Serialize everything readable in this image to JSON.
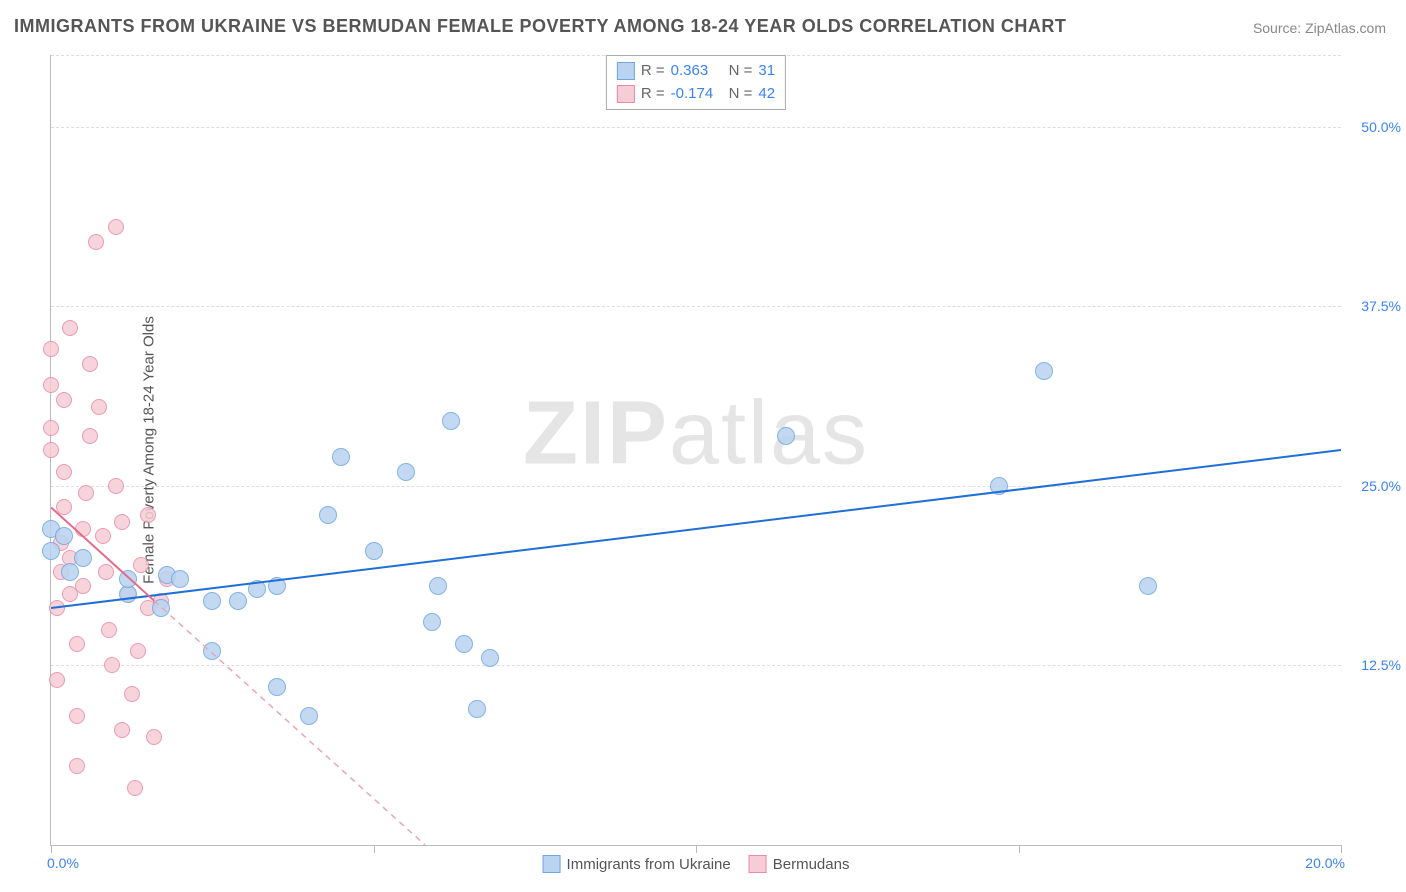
{
  "title": "IMMIGRANTS FROM UKRAINE VS BERMUDAN FEMALE POVERTY AMONG 18-24 YEAR OLDS CORRELATION CHART",
  "source_label": "Source: ",
  "source_value": "ZipAtlas.com",
  "watermark_prefix": "ZIP",
  "watermark_suffix": "atlas",
  "y_axis_title": "Female Poverty Among 18-24 Year Olds",
  "chart": {
    "type": "scatter",
    "xlim": [
      0,
      20
    ],
    "ylim": [
      0,
      55
    ],
    "x_ticks": [
      0,
      5,
      10,
      15,
      20
    ],
    "x_tick_labels_shown": {
      "0": "0.0%",
      "20": "20.0%"
    },
    "y_ticks": [
      12.5,
      25.0,
      37.5,
      50.0
    ],
    "y_tick_labels": [
      "12.5%",
      "25.0%",
      "37.5%",
      "50.0%"
    ],
    "grid_color": "#dddddd",
    "axis_color": "#bbbbbb",
    "tick_label_color": "#3b82f6",
    "background_color": "#ffffff",
    "series": [
      {
        "name": "Immigrants from Ukraine",
        "marker_color_fill": "#b9d3f0",
        "marker_color_stroke": "#6ea6e0",
        "marker_radius": 9,
        "R": "0.363",
        "N": "31",
        "trend": {
          "x1": 0,
          "y1": 16.5,
          "x2": 20,
          "y2": 27.5,
          "color": "#1f6fd6",
          "width": 2,
          "dash": "none"
        },
        "points": [
          [
            0.0,
            22.0
          ],
          [
            0.0,
            20.5
          ],
          [
            0.2,
            21.5
          ],
          [
            0.3,
            19.0
          ],
          [
            0.5,
            20.0
          ],
          [
            1.2,
            17.5
          ],
          [
            1.2,
            18.5
          ],
          [
            1.8,
            18.8
          ],
          [
            1.7,
            16.5
          ],
          [
            2.0,
            18.5
          ],
          [
            2.5,
            13.5
          ],
          [
            2.5,
            17.0
          ],
          [
            2.9,
            17.0
          ],
          [
            3.2,
            17.8
          ],
          [
            3.5,
            18.0
          ],
          [
            3.5,
            11.0
          ],
          [
            4.0,
            9.0
          ],
          [
            4.3,
            23.0
          ],
          [
            4.5,
            27.0
          ],
          [
            5.0,
            20.5
          ],
          [
            5.5,
            26.0
          ],
          [
            5.9,
            15.5
          ],
          [
            6.0,
            18.0
          ],
          [
            6.2,
            29.5
          ],
          [
            6.4,
            14.0
          ],
          [
            6.6,
            9.5
          ],
          [
            6.8,
            13.0
          ],
          [
            11.4,
            28.5
          ],
          [
            14.7,
            25.0
          ],
          [
            15.4,
            33.0
          ],
          [
            17.0,
            18.0
          ]
        ]
      },
      {
        "name": "Bermudans",
        "marker_color_fill": "#f6cdd7",
        "marker_color_stroke": "#e98aa3",
        "marker_radius": 8,
        "R": "-0.174",
        "N": "42",
        "trend_solid": {
          "x1": 0,
          "y1": 23.5,
          "x2": 1.6,
          "y2": 17.0,
          "color": "#e36b8c",
          "width": 2
        },
        "trend_dashed": {
          "x1": 1.6,
          "y1": 17.0,
          "x2": 5.8,
          "y2": 0,
          "color": "#e8a5b7",
          "width": 1.5,
          "dash": "6,5"
        },
        "points": [
          [
            0.0,
            34.5
          ],
          [
            0.0,
            32.0
          ],
          [
            0.0,
            27.5
          ],
          [
            0.0,
            29.0
          ],
          [
            0.1,
            11.5
          ],
          [
            0.1,
            16.5
          ],
          [
            0.15,
            19.0
          ],
          [
            0.15,
            21.0
          ],
          [
            0.2,
            23.5
          ],
          [
            0.2,
            26.0
          ],
          [
            0.2,
            31.0
          ],
          [
            0.3,
            36.0
          ],
          [
            0.3,
            20.0
          ],
          [
            0.3,
            17.5
          ],
          [
            0.4,
            9.0
          ],
          [
            0.4,
            5.5
          ],
          [
            0.4,
            14.0
          ],
          [
            0.5,
            18.0
          ],
          [
            0.5,
            22.0
          ],
          [
            0.55,
            24.5
          ],
          [
            0.6,
            28.5
          ],
          [
            0.6,
            33.5
          ],
          [
            0.7,
            42.0
          ],
          [
            0.75,
            30.5
          ],
          [
            0.8,
            21.5
          ],
          [
            0.85,
            19.0
          ],
          [
            0.9,
            15.0
          ],
          [
            0.95,
            12.5
          ],
          [
            1.0,
            43.0
          ],
          [
            1.0,
            25.0
          ],
          [
            1.1,
            22.5
          ],
          [
            1.1,
            8.0
          ],
          [
            1.2,
            17.5
          ],
          [
            1.25,
            10.5
          ],
          [
            1.3,
            4.0
          ],
          [
            1.35,
            13.5
          ],
          [
            1.4,
            19.5
          ],
          [
            1.5,
            23.0
          ],
          [
            1.5,
            16.5
          ],
          [
            1.6,
            7.5
          ],
          [
            1.7,
            17.0
          ],
          [
            1.8,
            18.5
          ]
        ]
      }
    ]
  },
  "legend_top": {
    "rows": [
      {
        "swatch_fill": "#b9d3f0",
        "swatch_stroke": "#6ea6e0",
        "r_label": "R = ",
        "r_value": "0.363",
        "n_label": "N = ",
        "n_value": "31"
      },
      {
        "swatch_fill": "#f6cdd7",
        "swatch_stroke": "#e98aa3",
        "r_label": "R = ",
        "r_value": "-0.174",
        "n_label": "N = ",
        "n_value": "42"
      }
    ],
    "value_color": "#3b82f6",
    "label_color": "#666666"
  },
  "legend_bottom": {
    "items": [
      {
        "swatch_fill": "#b9d3f0",
        "swatch_stroke": "#6ea6e0",
        "label": "Immigrants from Ukraine"
      },
      {
        "swatch_fill": "#f6cdd7",
        "swatch_stroke": "#e98aa3",
        "label": "Bermudans"
      }
    ]
  }
}
